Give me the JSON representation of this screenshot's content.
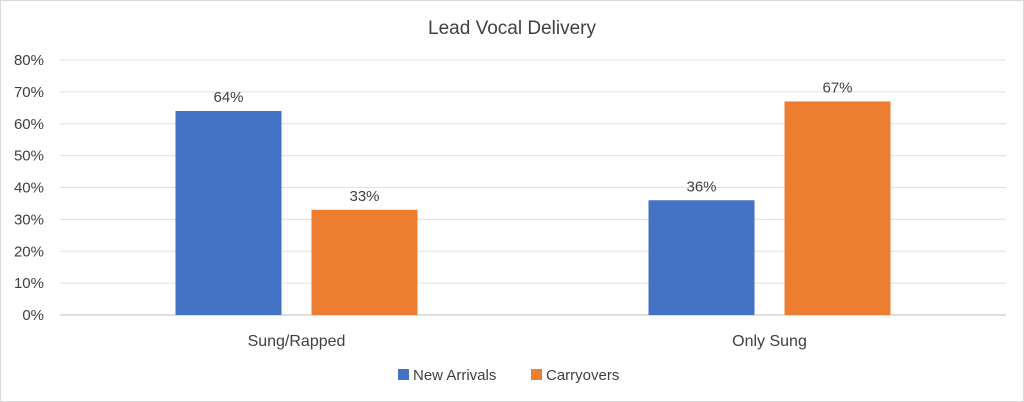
{
  "chart_data": {
    "type": "bar",
    "title": "Lead Vocal Delivery",
    "categories": [
      "Sung/Rapped",
      "Only Sung"
    ],
    "series": [
      {
        "name": "New Arrivals",
        "values": [
          64,
          36
        ],
        "color": "#4472c4"
      },
      {
        "name": "Carryovers",
        "values": [
          33,
          67
        ],
        "color": "#ed7d31"
      }
    ],
    "data_labels": [
      [
        "64%",
        "36%"
      ],
      [
        "33%",
        "67%"
      ]
    ],
    "ylim": [
      0,
      80
    ],
    "y_ticks": [
      0,
      10,
      20,
      30,
      40,
      50,
      60,
      70,
      80
    ],
    "y_tick_labels": [
      "0%",
      "10%",
      "20%",
      "30%",
      "40%",
      "50%",
      "60%",
      "70%",
      "80%"
    ],
    "grid": true,
    "legend_position": "bottom"
  }
}
